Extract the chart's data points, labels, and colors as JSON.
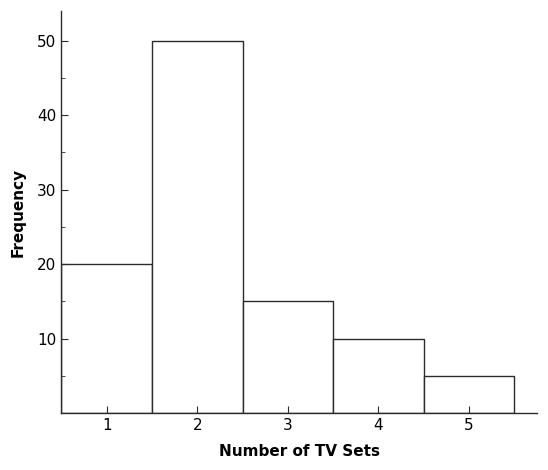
{
  "bar_left_edges": [
    0.5,
    1.5,
    2.5,
    3.5,
    4.5
  ],
  "frequencies": [
    20,
    50,
    15,
    10,
    5
  ],
  "bar_width": 1.0,
  "bar_color": "#ffffff",
  "bar_edgecolor": "#2b2b2b",
  "bar_linewidth": 1.0,
  "xlabel": "Number of TV Sets",
  "ylabel": "Frequency",
  "xlabel_fontsize": 11,
  "ylabel_fontsize": 11,
  "xlabel_fontweight": "bold",
  "ylabel_fontweight": "bold",
  "xlim": [
    0.5,
    5.75
  ],
  "ylim": [
    0,
    54
  ],
  "yticks_major": [
    10,
    20,
    30,
    40,
    50
  ],
  "yticks_minor": [
    5,
    15,
    25,
    35,
    45
  ],
  "xticks": [
    1,
    2,
    3,
    4,
    5
  ],
  "background_color": "#ffffff",
  "figsize": [
    5.48,
    4.7
  ],
  "dpi": 100,
  "spine_color": "#2b2b2b",
  "spine_linewidth": 1.0,
  "tick_labelsize": 11
}
